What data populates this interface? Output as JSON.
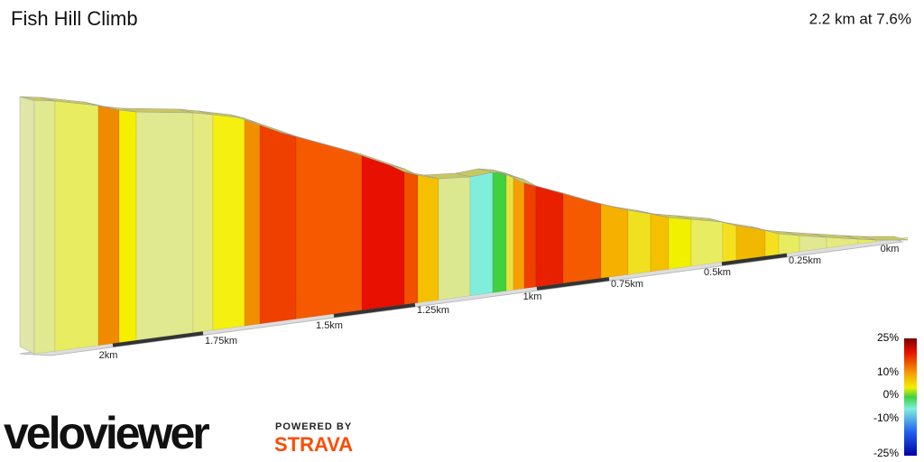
{
  "header": {
    "title": "Fish Hill Climb",
    "summary": "2.2 km at 7.6%"
  },
  "distance_labels": [
    "2km",
    "1.75km",
    "1.5km",
    "1.25km",
    "1km",
    "0.75km",
    "0.5km",
    "0.25km",
    "0km"
  ],
  "gradient_legend": [
    "25%",
    "10%",
    "0%",
    "-10%",
    "-25%"
  ],
  "branding": {
    "logo": "veloviewer",
    "powered_by": "POWERED BY",
    "partner": "STRAVA"
  }
}
